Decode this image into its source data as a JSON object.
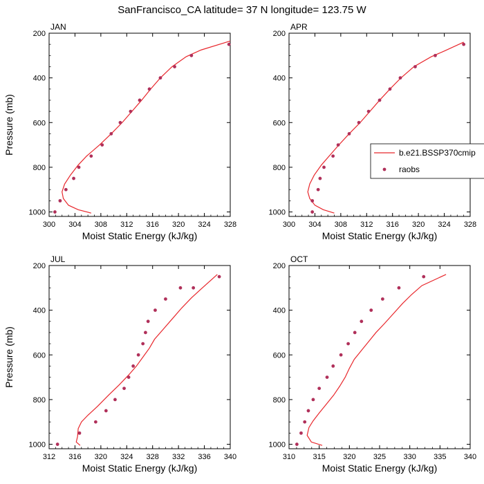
{
  "title": "SanFrancisco_CA  latitude= 37 N longitude= 123.75 W",
  "colors": {
    "model": "#e8262b",
    "obs": "#b0305a"
  },
  "legend": {
    "model_label": "b.e21.BSSP370cmip",
    "obs_label": "raobs"
  },
  "chart_data": [
    {
      "type": "line",
      "panel": "JAN",
      "xlabel": "Moist Static Energy (kJ/kg)",
      "ylabel": "Pressure (mb)",
      "xlim": [
        300,
        328
      ],
      "ylim": [
        1020,
        200
      ],
      "xticks": [
        300,
        304,
        308,
        312,
        316,
        320,
        324,
        328
      ],
      "yticks": [
        200,
        400,
        600,
        800,
        1000
      ],
      "series": [
        {
          "name": "b.e21.BSSP370cmip",
          "kind": "line",
          "points": [
            [
              306.5,
              1005
            ],
            [
              304.5,
              990
            ],
            [
              303.0,
              970
            ],
            [
              302.2,
              940
            ],
            [
              302.0,
              910
            ],
            [
              302.4,
              875
            ],
            [
              303.3,
              835
            ],
            [
              304.5,
              790
            ],
            [
              305.8,
              750
            ],
            [
              307.8,
              700
            ],
            [
              309.6,
              650
            ],
            [
              311.3,
              600
            ],
            [
              312.8,
              550
            ],
            [
              314.3,
              500
            ],
            [
              315.7,
              450
            ],
            [
              317.2,
              400
            ],
            [
              319.0,
              350
            ],
            [
              321.2,
              305
            ],
            [
              323.5,
              275
            ],
            [
              328.0,
              235
            ]
          ]
        },
        {
          "name": "raobs",
          "kind": "scatter",
          "points": [
            [
              300.9,
              1000
            ],
            [
              301.7,
              950
            ],
            [
              302.6,
              900
            ],
            [
              303.8,
              850
            ],
            [
              304.6,
              800
            ],
            [
              306.5,
              750
            ],
            [
              308.2,
              700
            ],
            [
              309.6,
              650
            ],
            [
              311.0,
              600
            ],
            [
              312.6,
              550
            ],
            [
              314.0,
              500
            ],
            [
              315.5,
              450
            ],
            [
              317.2,
              400
            ],
            [
              319.4,
              350
            ],
            [
              322.0,
              300
            ],
            [
              327.8,
              250
            ]
          ]
        }
      ]
    },
    {
      "type": "line",
      "panel": "APR",
      "xlabel": "Moist Static Energy (kJ/kg)",
      "ylabel": "",
      "xlim": [
        300,
        328
      ],
      "ylim": [
        1020,
        200
      ],
      "xticks": [
        300,
        304,
        308,
        312,
        316,
        320,
        324,
        328
      ],
      "yticks": [
        200,
        400,
        600,
        800,
        1000
      ],
      "series": [
        {
          "name": "b.e21.BSSP370cmip",
          "kind": "line",
          "points": [
            [
              307.0,
              1005
            ],
            [
              305.3,
              990
            ],
            [
              304.0,
              970
            ],
            [
              303.2,
              940
            ],
            [
              302.9,
              910
            ],
            [
              303.2,
              875
            ],
            [
              303.9,
              835
            ],
            [
              305.0,
              790
            ],
            [
              306.2,
              750
            ],
            [
              307.7,
              700
            ],
            [
              309.3,
              650
            ],
            [
              311.0,
              600
            ],
            [
              312.5,
              550
            ],
            [
              314.0,
              500
            ],
            [
              315.6,
              450
            ],
            [
              317.3,
              400
            ],
            [
              319.3,
              350
            ],
            [
              322.0,
              305
            ],
            [
              324.0,
              280
            ],
            [
              327.0,
              240
            ]
          ]
        },
        {
          "name": "raobs",
          "kind": "scatter",
          "points": [
            [
              303.6,
              1000
            ],
            [
              303.6,
              950
            ],
            [
              304.5,
              900
            ],
            [
              304.8,
              850
            ],
            [
              305.4,
              800
            ],
            [
              306.8,
              750
            ],
            [
              307.6,
              700
            ],
            [
              309.3,
              650
            ],
            [
              310.8,
              600
            ],
            [
              312.3,
              550
            ],
            [
              314.0,
              500
            ],
            [
              315.6,
              450
            ],
            [
              317.2,
              400
            ],
            [
              319.5,
              350
            ],
            [
              322.6,
              300
            ],
            [
              327.0,
              250
            ]
          ]
        }
      ]
    },
    {
      "type": "line",
      "panel": "JUL",
      "xlabel": "Moist Static Energy (kJ/kg)",
      "ylabel": "Pressure (mb)",
      "xlim": [
        312,
        340
      ],
      "ylim": [
        1020,
        200
      ],
      "xticks": [
        312,
        316,
        320,
        324,
        328,
        332,
        336,
        340
      ],
      "yticks": [
        200,
        400,
        600,
        800,
        1000
      ],
      "series": [
        {
          "name": "b.e21.BSSP370cmip",
          "kind": "line",
          "points": [
            [
              316.8,
              1005
            ],
            [
              316.2,
              990
            ],
            [
              316.4,
              965
            ],
            [
              316.5,
              930
            ],
            [
              317.0,
              900
            ],
            [
              318.0,
              870
            ],
            [
              319.5,
              830
            ],
            [
              321.2,
              780
            ],
            [
              322.8,
              735
            ],
            [
              324.3,
              690
            ],
            [
              325.5,
              650
            ],
            [
              326.5,
              610
            ],
            [
              327.5,
              570
            ],
            [
              328.3,
              530
            ],
            [
              329.5,
              490
            ],
            [
              331.0,
              440
            ],
            [
              332.5,
              390
            ],
            [
              334.0,
              345
            ],
            [
              335.5,
              305
            ],
            [
              338.0,
              240
            ]
          ]
        },
        {
          "name": "raobs",
          "kind": "scatter",
          "points": [
            [
              313.3,
              1000
            ],
            [
              316.7,
              950
            ],
            [
              319.2,
              900
            ],
            [
              320.8,
              850
            ],
            [
              322.2,
              800
            ],
            [
              323.6,
              750
            ],
            [
              324.3,
              700
            ],
            [
              325.0,
              650
            ],
            [
              325.8,
              600
            ],
            [
              326.5,
              550
            ],
            [
              326.9,
              500
            ],
            [
              327.3,
              450
            ],
            [
              328.4,
              400
            ],
            [
              330.0,
              350
            ],
            [
              332.3,
              300
            ],
            [
              334.3,
              300
            ],
            [
              338.3,
              250
            ]
          ]
        }
      ]
    },
    {
      "type": "line",
      "panel": "OCT",
      "xlabel": "Moist Static Energy (kJ/kg)",
      "ylabel": "",
      "xlim": [
        310,
        340
      ],
      "ylim": [
        1020,
        200
      ],
      "xticks": [
        310,
        315,
        320,
        325,
        330,
        335,
        340
      ],
      "yticks": [
        200,
        400,
        600,
        800,
        1000
      ],
      "series": [
        {
          "name": "b.e21.BSSP370cmip",
          "kind": "line",
          "points": [
            [
              315.5,
              1005
            ],
            [
              313.7,
              990
            ],
            [
              313.0,
              960
            ],
            [
              313.3,
              925
            ],
            [
              314.0,
              895
            ],
            [
              315.0,
              860
            ],
            [
              316.2,
              820
            ],
            [
              317.4,
              780
            ],
            [
              318.4,
              740
            ],
            [
              319.3,
              700
            ],
            [
              320.0,
              660
            ],
            [
              320.8,
              620
            ],
            [
              322.0,
              580
            ],
            [
              323.2,
              540
            ],
            [
              324.4,
              500
            ],
            [
              325.8,
              460
            ],
            [
              327.3,
              415
            ],
            [
              328.8,
              370
            ],
            [
              330.3,
              330
            ],
            [
              332.0,
              290
            ],
            [
              336.0,
              240
            ]
          ]
        },
        {
          "name": "raobs",
          "kind": "scatter",
          "points": [
            [
              311.3,
              1000
            ],
            [
              312.0,
              950
            ],
            [
              312.6,
              900
            ],
            [
              313.2,
              850
            ],
            [
              314.0,
              800
            ],
            [
              315.0,
              750
            ],
            [
              316.3,
              700
            ],
            [
              317.3,
              650
            ],
            [
              318.6,
              600
            ],
            [
              319.8,
              550
            ],
            [
              320.9,
              500
            ],
            [
              322.0,
              450
            ],
            [
              323.6,
              400
            ],
            [
              325.5,
              350
            ],
            [
              328.2,
              300
            ],
            [
              332.3,
              250
            ]
          ]
        }
      ]
    }
  ]
}
